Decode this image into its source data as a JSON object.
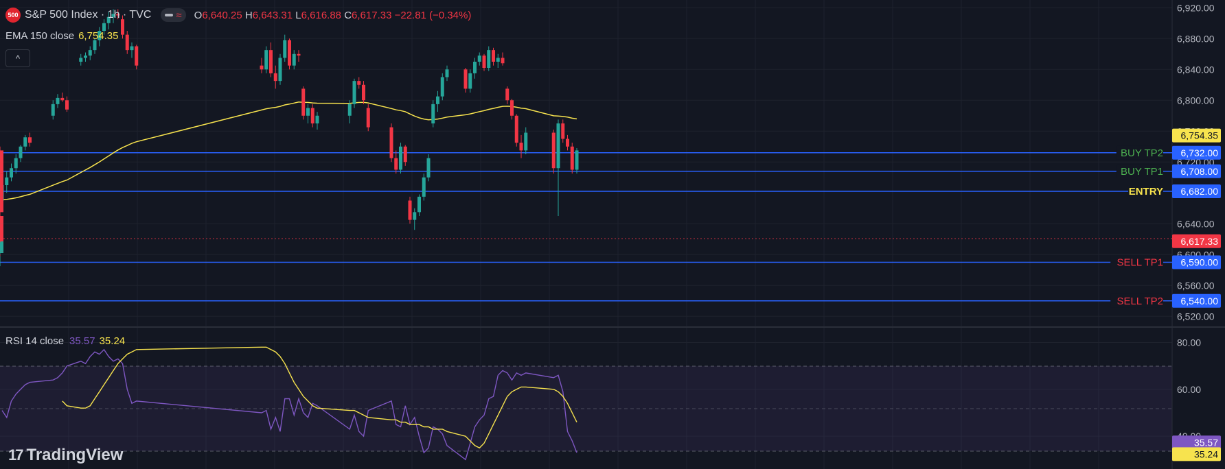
{
  "header": {
    "symbol_badge": "500",
    "symbol_title": "S&P 500 Index · 1h · TVC",
    "ohlc": {
      "open_label": "O",
      "open": "6,640.25",
      "high_label": "H",
      "high": "6,643.31",
      "low_label": "L",
      "low": "6,616.88",
      "close_label": "C",
      "close": "6,617.33",
      "change": "−22.81 (−0.34%)"
    }
  },
  "ema_legend": {
    "label": "EMA 150 close",
    "value": "6,754.35"
  },
  "rsi_legend": {
    "label": "RSI 14 close",
    "value1": "35.57",
    "value2": "35.24"
  },
  "branding": {
    "name": "TradingView"
  },
  "icons": {
    "collapse": "chevron-up-icon",
    "logo": "tradingview-logo-icon",
    "visibility": "eye-toggle-icon",
    "wave": "wave-icon"
  },
  "colors": {
    "background": "#131722",
    "up": "#26a69a",
    "down": "#f23645",
    "ema": "#f7e34e",
    "rsi": "#7e57c2",
    "rsi_ma": "#f7e34e",
    "level_line": "#2962ff",
    "label_bg": "#2962ff",
    "buy_text": "#4caf50",
    "entry_text": "#f7e34e",
    "sell_text": "#f23645"
  },
  "price_axis": {
    "ticks": [
      "6,920.00",
      "6,880.00",
      "6,840.00",
      "6,800.00",
      "6,760.00",
      "6,720.00",
      "6,640.00",
      "6,600.00",
      "6,560.00",
      "6,520.00"
    ],
    "current_price": "6,617.33",
    "ema_price": "6,754.35"
  },
  "rsi_axis": {
    "ticks": [
      "80.00",
      "60.00",
      "40.00"
    ],
    "value1": "35.57",
    "value2": "35.24"
  },
  "levels": [
    {
      "name": "BUY TP2",
      "price": "6,732.00",
      "value": 6732,
      "kind": "buy"
    },
    {
      "name": "BUY TP1",
      "price": "6,708.00",
      "value": 6708,
      "kind": "buy"
    },
    {
      "name": "ENTRY",
      "price": "6,682.00",
      "value": 6682,
      "kind": "entry"
    },
    {
      "name": "SELL TP1",
      "price": "6,590.00",
      "value": 6590,
      "kind": "sell"
    },
    {
      "name": "SELL TP2",
      "price": "6,540.00",
      "value": 6540,
      "kind": "sell"
    }
  ],
  "chart_data": [
    {
      "type": "candlestick",
      "title": "S&P 500 Index · 1h · TVC",
      "ylim": [
        6506,
        6930
      ],
      "grid": true,
      "candles": [
        [
          6670,
          6690,
          6655,
          6690
        ],
        [
          6690,
          6708,
          6680,
          6700
        ],
        [
          6700,
          6718,
          6695,
          6712
        ],
        [
          6712,
          6730,
          6705,
          6725
        ],
        [
          6725,
          6742,
          6720,
          6740
        ],
        [
          6740,
          6755,
          6735,
          6752
        ],
        [
          6752,
          6758,
          6740,
          6745
        ],
        [
          6780,
          6800,
          6775,
          6795
        ],
        [
          6795,
          6808,
          6790,
          6803
        ],
        [
          6803,
          6810,
          6798,
          6800
        ],
        [
          6800,
          6805,
          6785,
          6788
        ],
        [
          6850,
          6860,
          6845,
          6855
        ],
        [
          6855,
          6862,
          6850,
          6858
        ],
        [
          6858,
          6870,
          6852,
          6865
        ],
        [
          6865,
          6880,
          6860,
          6878
        ],
        [
          6878,
          6895,
          6870,
          6890
        ],
        [
          6890,
          6905,
          6885,
          6900
        ],
        [
          6900,
          6915,
          6892,
          6908
        ],
        [
          6908,
          6918,
          6900,
          6912
        ],
        [
          6912,
          6918,
          6905,
          6910
        ],
        [
          6905,
          6910,
          6880,
          6885
        ],
        [
          6885,
          6890,
          6860,
          6865
        ],
        [
          6865,
          6875,
          6855,
          6870
        ],
        [
          6870,
          6872,
          6840,
          6845
        ],
        [
          6845,
          6855,
          6835,
          6840
        ],
        [
          6840,
          6870,
          6835,
          6865
        ],
        [
          6865,
          6875,
          6830,
          6835
        ],
        [
          6835,
          6845,
          6815,
          6825
        ],
        [
          6825,
          6860,
          6820,
          6855
        ],
        [
          6855,
          6885,
          6850,
          6878
        ],
        [
          6878,
          6880,
          6840,
          6845
        ],
        [
          6845,
          6865,
          6840,
          6860
        ],
        [
          6860,
          6865,
          6850,
          6858
        ],
        [
          6815,
          6818,
          6775,
          6780
        ],
        [
          6780,
          6795,
          6770,
          6790
        ],
        [
          6790,
          6795,
          6765,
          6770
        ],
        [
          6770,
          6785,
          6762,
          6780
        ],
        [
          6780,
          6800,
          6770,
          6795
        ],
        [
          6795,
          6828,
          6790,
          6825
        ],
        [
          6825,
          6830,
          6815,
          6820
        ],
        [
          6820,
          6825,
          6795,
          6800
        ],
        [
          6790,
          6795,
          6760,
          6765
        ],
        [
          6765,
          6770,
          6720,
          6725
        ],
        [
          6725,
          6735,
          6705,
          6710
        ],
        [
          6710,
          6745,
          6705,
          6740
        ],
        [
          6740,
          6742,
          6715,
          6720
        ],
        [
          6670,
          6675,
          6640,
          6645
        ],
        [
          6645,
          6660,
          6632,
          6655
        ],
        [
          6655,
          6678,
          6650,
          6675
        ],
        [
          6675,
          6705,
          6670,
          6700
        ],
        [
          6700,
          6730,
          6695,
          6725
        ],
        [
          6770,
          6800,
          6765,
          6795
        ],
        [
          6795,
          6812,
          6785,
          6805
        ],
        [
          6805,
          6835,
          6800,
          6830
        ],
        [
          6830,
          6845,
          6825,
          6840
        ],
        [
          6840,
          6842,
          6810,
          6815
        ],
        [
          6815,
          6840,
          6810,
          6835
        ],
        [
          6835,
          6855,
          6828,
          6850
        ],
        [
          6850,
          6862,
          6845,
          6858
        ],
        [
          6858,
          6860,
          6838,
          6842
        ],
        [
          6842,
          6870,
          6838,
          6865
        ],
        [
          6865,
          6868,
          6845,
          6850
        ],
        [
          6850,
          6860,
          6842,
          6855
        ],
        [
          6855,
          6862,
          6845,
          6848
        ],
        [
          6815,
          6818,
          6795,
          6800
        ],
        [
          6800,
          6802,
          6775,
          6780
        ],
        [
          6780,
          6782,
          6740,
          6745
        ],
        [
          6745,
          6755,
          6725,
          6735
        ],
        [
          6735,
          6765,
          6730,
          6758
        ],
        [
          6758,
          6762,
          6705,
          6712
        ],
        [
          6712,
          6775,
          6650,
          6770
        ],
        [
          6770,
          6775,
          6745,
          6750
        ],
        [
          6750,
          6755,
          6735,
          6740
        ],
        [
          6740,
          6745,
          6705,
          6710
        ],
        [
          6710,
          6738,
          6705,
          6735
        ],
        [
          6735,
          6740,
          6700,
          6705
        ],
        [
          6705,
          6710,
          6670,
          6675
        ],
        [
          6675,
          6680,
          6650,
          6655
        ],
        [
          6650,
          6652,
          6598,
          6602
        ],
        [
          6602,
          6640,
          6585,
          6635
        ],
        [
          6635,
          6645,
          6598,
          6604
        ],
        [
          6604,
          6656,
          6600,
          6650
        ],
        [
          6650,
          6658,
          6630,
          6640
        ],
        [
          6640,
          6643,
          6616,
          6617
        ]
      ]
    },
    {
      "type": "line",
      "title": "RSI 14 close",
      "ylim": [
        26,
        86
      ],
      "series": [
        {
          "values": [
            51,
            48,
            55,
            58,
            60,
            62,
            63,
            64,
            65,
            67,
            70,
            72,
            71,
            74,
            76,
            75,
            77,
            74,
            72,
            73,
            71,
            60,
            54,
            55,
            50,
            51,
            43,
            48,
            42,
            56,
            56,
            49,
            56,
            50,
            48,
            54,
            53,
            43,
            49,
            42,
            40,
            51,
            55,
            45,
            44,
            53,
            45,
            48,
            40,
            33,
            35,
            44,
            43,
            41,
            36,
            30,
            37,
            44,
            47,
            49,
            56,
            57,
            66,
            68,
            67,
            64,
            67,
            66,
            67,
            65,
            66,
            59,
            42,
            38,
            33,
            41,
            34,
            47,
            44,
            43,
            33,
            36,
            31,
            30,
            39,
            35
          ]
        },
        {
          "values": [
            55,
            53,
            52,
            52,
            53,
            56,
            59,
            62,
            65,
            68,
            71,
            73,
            75,
            76,
            77,
            78,
            78,
            77,
            76,
            74,
            71,
            67,
            63,
            60,
            57,
            55,
            53,
            52,
            51,
            51,
            50,
            49,
            48,
            47,
            47,
            46,
            46,
            45,
            45,
            45,
            44,
            44,
            43,
            43,
            43,
            42,
            40,
            38,
            36,
            35,
            37,
            41,
            45,
            49,
            53,
            57,
            59,
            60,
            61,
            61,
            60,
            59,
            57,
            54,
            50,
            46,
            43,
            42,
            41,
            40,
            40,
            39,
            38,
            37,
            36,
            36,
            35
          ]
        }
      ]
    }
  ]
}
